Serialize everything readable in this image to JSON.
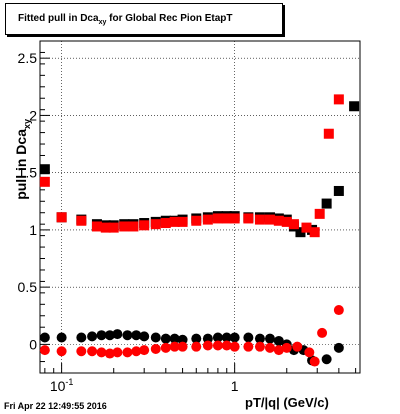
{
  "chart_data": {
    "type": "scatter",
    "title_main": "Fitted pull in Dca",
    "title_sub": "xy",
    "title_tail": " for Global Rec Pion EtapT",
    "ylabel_main": "pull in Dca",
    "ylabel_sub": "xy",
    "xlabel": "pT/|q| (GeV/c)",
    "xscale": "log",
    "xlim": [
      0.075,
      5.3
    ],
    "ylim": [
      -0.25,
      2.65
    ],
    "y_ticks": [
      {
        "v": 0,
        "label": "0"
      },
      {
        "v": 0.5,
        "label": "0.5"
      },
      {
        "v": 1,
        "label": "1"
      },
      {
        "v": 1.5,
        "label": "1.5"
      },
      {
        "v": 2,
        "label": "2"
      },
      {
        "v": 2.5,
        "label": "2.5"
      }
    ],
    "x_ticks": [
      {
        "v": 0.1,
        "label": "10",
        "sup": "-1"
      },
      {
        "v": 1,
        "label": "1",
        "sup": ""
      }
    ],
    "grid": true,
    "series": [
      {
        "marker": "square",
        "color": "#000000",
        "points": [
          {
            "x": 0.08,
            "y": 1.53
          },
          {
            "x": 0.1,
            "y": 1.11
          },
          {
            "x": 0.13,
            "y": 1.09
          },
          {
            "x": 0.16,
            "y": 1.05
          },
          {
            "x": 0.18,
            "y": 1.04
          },
          {
            "x": 0.2,
            "y": 1.04
          },
          {
            "x": 0.23,
            "y": 1.05
          },
          {
            "x": 0.26,
            "y": 1.05
          },
          {
            "x": 0.3,
            "y": 1.06
          },
          {
            "x": 0.35,
            "y": 1.07
          },
          {
            "x": 0.4,
            "y": 1.08
          },
          {
            "x": 0.45,
            "y": 1.08
          },
          {
            "x": 0.5,
            "y": 1.09
          },
          {
            "x": 0.6,
            "y": 1.1
          },
          {
            "x": 0.7,
            "y": 1.11
          },
          {
            "x": 0.8,
            "y": 1.12
          },
          {
            "x": 0.9,
            "y": 1.12
          },
          {
            "x": 1.0,
            "y": 1.12
          },
          {
            "x": 1.2,
            "y": 1.11
          },
          {
            "x": 1.4,
            "y": 1.11
          },
          {
            "x": 1.6,
            "y": 1.11
          },
          {
            "x": 1.8,
            "y": 1.1
          },
          {
            "x": 2.0,
            "y": 1.09
          },
          {
            "x": 2.2,
            "y": 1.03
          },
          {
            "x": 2.4,
            "y": 0.98
          },
          {
            "x": 2.8,
            "y": 1.0
          },
          {
            "x": 3.4,
            "y": 1.23
          },
          {
            "x": 4.0,
            "y": 1.34
          },
          {
            "x": 4.9,
            "y": 2.08
          }
        ]
      },
      {
        "marker": "square",
        "color": "#ff0000",
        "points": [
          {
            "x": 0.08,
            "y": 1.42
          },
          {
            "x": 0.1,
            "y": 1.11
          },
          {
            "x": 0.13,
            "y": 1.08
          },
          {
            "x": 0.16,
            "y": 1.03
          },
          {
            "x": 0.18,
            "y": 1.02
          },
          {
            "x": 0.2,
            "y": 1.02
          },
          {
            "x": 0.23,
            "y": 1.03
          },
          {
            "x": 0.26,
            "y": 1.03
          },
          {
            "x": 0.3,
            "y": 1.04
          },
          {
            "x": 0.35,
            "y": 1.05
          },
          {
            "x": 0.4,
            "y": 1.06
          },
          {
            "x": 0.45,
            "y": 1.07
          },
          {
            "x": 0.5,
            "y": 1.07
          },
          {
            "x": 0.6,
            "y": 1.08
          },
          {
            "x": 0.7,
            "y": 1.09
          },
          {
            "x": 0.8,
            "y": 1.1
          },
          {
            "x": 0.9,
            "y": 1.1
          },
          {
            "x": 1.0,
            "y": 1.1
          },
          {
            "x": 1.2,
            "y": 1.1
          },
          {
            "x": 1.4,
            "y": 1.09
          },
          {
            "x": 1.6,
            "y": 1.09
          },
          {
            "x": 1.8,
            "y": 1.08
          },
          {
            "x": 2.0,
            "y": 1.07
          },
          {
            "x": 2.2,
            "y": 1.05
          },
          {
            "x": 2.6,
            "y": 1.02
          },
          {
            "x": 2.9,
            "y": 0.98
          },
          {
            "x": 3.1,
            "y": 1.14
          },
          {
            "x": 3.5,
            "y": 1.84
          },
          {
            "x": 4.0,
            "y": 2.14
          }
        ]
      },
      {
        "marker": "circle",
        "color": "#000000",
        "points": [
          {
            "x": 0.08,
            "y": 0.06
          },
          {
            "x": 0.1,
            "y": 0.06
          },
          {
            "x": 0.13,
            "y": 0.06
          },
          {
            "x": 0.15,
            "y": 0.07
          },
          {
            "x": 0.17,
            "y": 0.08
          },
          {
            "x": 0.19,
            "y": 0.08
          },
          {
            "x": 0.21,
            "y": 0.09
          },
          {
            "x": 0.24,
            "y": 0.08
          },
          {
            "x": 0.27,
            "y": 0.08
          },
          {
            "x": 0.3,
            "y": 0.07
          },
          {
            "x": 0.35,
            "y": 0.06
          },
          {
            "x": 0.4,
            "y": 0.05
          },
          {
            "x": 0.45,
            "y": 0.05
          },
          {
            "x": 0.5,
            "y": 0.04
          },
          {
            "x": 0.6,
            "y": 0.05
          },
          {
            "x": 0.7,
            "y": 0.05
          },
          {
            "x": 0.8,
            "y": 0.06
          },
          {
            "x": 0.9,
            "y": 0.06
          },
          {
            "x": 1.0,
            "y": 0.06
          },
          {
            "x": 1.2,
            "y": 0.06
          },
          {
            "x": 1.4,
            "y": 0.05
          },
          {
            "x": 1.6,
            "y": 0.05
          },
          {
            "x": 1.8,
            "y": 0.03
          },
          {
            "x": 2.0,
            "y": 0.0
          },
          {
            "x": 2.2,
            "y": -0.05
          },
          {
            "x": 2.5,
            "y": -0.05
          },
          {
            "x": 2.8,
            "y": -0.14
          },
          {
            "x": 3.4,
            "y": -0.13
          },
          {
            "x": 4.0,
            "y": -0.03
          }
        ]
      },
      {
        "marker": "circle",
        "color": "#ff0000",
        "points": [
          {
            "x": 0.08,
            "y": -0.05
          },
          {
            "x": 0.1,
            "y": -0.06
          },
          {
            "x": 0.13,
            "y": -0.06
          },
          {
            "x": 0.15,
            "y": -0.06
          },
          {
            "x": 0.17,
            "y": -0.07
          },
          {
            "x": 0.19,
            "y": -0.08
          },
          {
            "x": 0.21,
            "y": -0.07
          },
          {
            "x": 0.24,
            "y": -0.07
          },
          {
            "x": 0.27,
            "y": -0.06
          },
          {
            "x": 0.3,
            "y": -0.05
          },
          {
            "x": 0.35,
            "y": -0.04
          },
          {
            "x": 0.4,
            "y": -0.03
          },
          {
            "x": 0.45,
            "y": -0.02
          },
          {
            "x": 0.5,
            "y": -0.02
          },
          {
            "x": 0.6,
            "y": -0.02
          },
          {
            "x": 0.7,
            "y": -0.01
          },
          {
            "x": 0.8,
            "y": -0.01
          },
          {
            "x": 0.9,
            "y": -0.01
          },
          {
            "x": 1.0,
            "y": -0.02
          },
          {
            "x": 1.2,
            "y": -0.02
          },
          {
            "x": 1.4,
            "y": -0.02
          },
          {
            "x": 1.6,
            "y": -0.03
          },
          {
            "x": 1.8,
            "y": -0.05
          },
          {
            "x": 2.0,
            "y": -0.03
          },
          {
            "x": 2.3,
            "y": -0.02
          },
          {
            "x": 2.7,
            "y": -0.07
          },
          {
            "x": 2.9,
            "y": -0.15
          },
          {
            "x": 3.2,
            "y": 0.1
          },
          {
            "x": 4.0,
            "y": 0.3
          }
        ]
      }
    ]
  },
  "footer": {
    "date": "Fri Apr 22 12:49:55 2016"
  }
}
